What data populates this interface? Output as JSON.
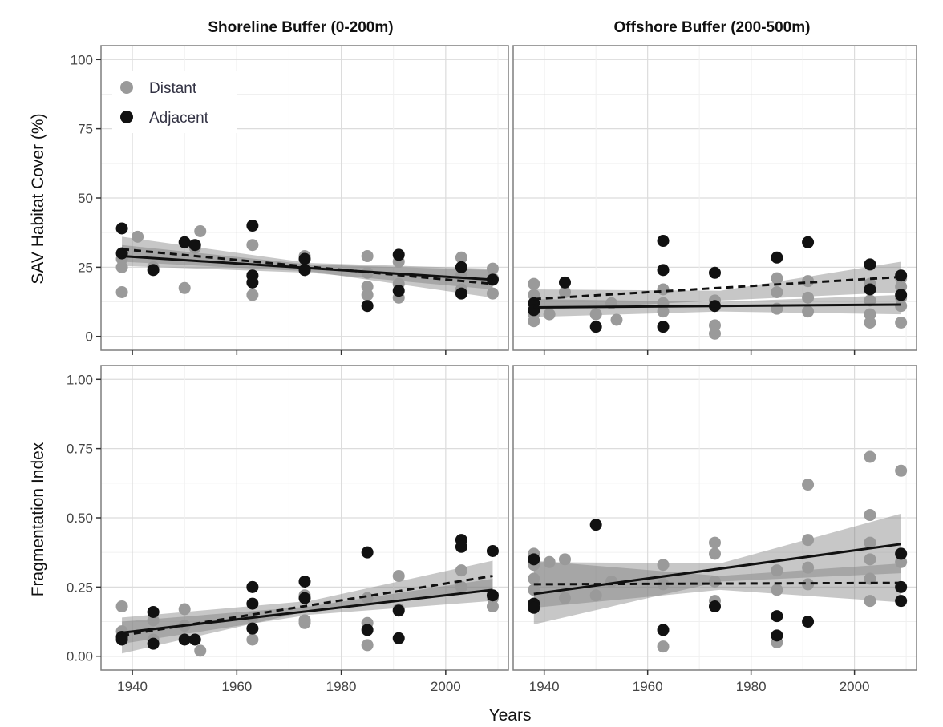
{
  "chart_data": {
    "type": "scatter",
    "facets": {
      "columns": [
        "Shoreline Buffer (0-200m)",
        "Offshore Buffer (200-500m)"
      ],
      "rows": [
        {
          "ylabel": "SAV Habitat Cover (%)",
          "ylim": [
            0,
            100
          ],
          "yticks": [
            "0",
            "25",
            "50",
            "75",
            "100"
          ]
        },
        {
          "ylabel": "Fragmentation Index",
          "ylim": [
            0,
            1
          ],
          "yticks": [
            "0.00",
            "0.25",
            "0.50",
            "0.75",
            "1.00"
          ]
        }
      ]
    },
    "xlabel": "Years",
    "xlim": [
      1934,
      2012
    ],
    "xticks": [
      "1940",
      "1960",
      "1980",
      "2000"
    ],
    "grid": true,
    "legend": {
      "placement": "top-left",
      "entries": [
        {
          "label": "Distant",
          "color": "#9a9a9a",
          "line": "dashed"
        },
        {
          "label": "Adjacent",
          "color": "#111111",
          "line": "solid"
        }
      ]
    },
    "panels": [
      {
        "row": 0,
        "col": 0,
        "distant": {
          "points": [
            [
              1938,
              16
            ],
            [
              1938,
              25
            ],
            [
              1938,
              28
            ],
            [
              1941,
              36
            ],
            [
              1944,
              25
            ],
            [
              1950,
              17.5
            ],
            [
              1953,
              38
            ],
            [
              1952,
              32
            ],
            [
              1963,
              33
            ],
            [
              1963,
              15
            ],
            [
              1963,
              22
            ],
            [
              1973,
              29
            ],
            [
              1973,
              25
            ],
            [
              1985,
              29
            ],
            [
              1985,
              23
            ],
            [
              1985,
              18
            ],
            [
              1985,
              15
            ],
            [
              1991,
              27
            ],
            [
              1991,
              14
            ],
            [
              1991,
              19
            ],
            [
              2003,
              28.5
            ],
            [
              2003,
              22
            ],
            [
              2003,
              17
            ],
            [
              2009,
              24.5
            ],
            [
              2009,
              21
            ],
            [
              2009,
              15.5
            ]
          ],
          "fit": [
            [
              1938,
              31.5
            ],
            [
              2009,
              19
            ]
          ],
          "band_upper": [
            [
              1938,
              36
            ],
            [
              1974,
              26.5
            ],
            [
              2009,
              24.5
            ]
          ],
          "band_lower": [
            [
              1938,
              27
            ],
            [
              1974,
              23.5
            ],
            [
              2009,
              14
            ]
          ]
        },
        "adjacent": {
          "points": [
            [
              1938,
              39
            ],
            [
              1938,
              30
            ],
            [
              1944,
              24
            ],
            [
              1950,
              34
            ],
            [
              1952,
              33
            ],
            [
              1963,
              40
            ],
            [
              1963,
              22
            ],
            [
              1963,
              19.5
            ],
            [
              1973,
              28
            ],
            [
              1973,
              24
            ],
            [
              1985,
              11
            ],
            [
              1991,
              29.5
            ],
            [
              1991,
              16.5
            ],
            [
              2003,
              15.5
            ],
            [
              2003,
              25
            ],
            [
              2009,
              20.5
            ]
          ],
          "fit": [
            [
              1938,
              29
            ],
            [
              2009,
              20.5
            ]
          ],
          "band_upper": [
            [
              1938,
              33
            ],
            [
              1974,
              26
            ],
            [
              2009,
              24
            ]
          ],
          "band_lower": [
            [
              1938,
              25.5
            ],
            [
              1974,
              23
            ],
            [
              2009,
              17
            ]
          ]
        }
      },
      {
        "row": 0,
        "col": 1,
        "distant": {
          "points": [
            [
              1938,
              19
            ],
            [
              1938,
              15
            ],
            [
              1938,
              12
            ],
            [
              1938,
              8
            ],
            [
              1938,
              5.5
            ],
            [
              1941,
              8
            ],
            [
              1944,
              16
            ],
            [
              1950,
              8
            ],
            [
              1953,
              12
            ],
            [
              1954,
              6
            ],
            [
              1963,
              17
            ],
            [
              1963,
              12
            ],
            [
              1963,
              9
            ],
            [
              1973,
              13
            ],
            [
              1973,
              4
            ],
            [
              1973,
              1
            ],
            [
              1985,
              21
            ],
            [
              1985,
              16
            ],
            [
              1985,
              10
            ],
            [
              1991,
              20
            ],
            [
              1991,
              14
            ],
            [
              1991,
              9
            ],
            [
              2003,
              19
            ],
            [
              2003,
              13
            ],
            [
              2003,
              8
            ],
            [
              2003,
              5
            ],
            [
              2009,
              21
            ],
            [
              2009,
              18
            ],
            [
              2009,
              14
            ],
            [
              2009,
              11
            ],
            [
              2009,
              5
            ]
          ],
          "fit": [
            [
              1938,
              13.5
            ],
            [
              2009,
              21.5
            ]
          ],
          "band_upper": [
            [
              1938,
              17
            ],
            [
              1974,
              16.5
            ],
            [
              2009,
              27
            ]
          ],
          "band_lower": [
            [
              1938,
              9.5
            ],
            [
              1974,
              13
            ],
            [
              2009,
              16
            ]
          ]
        },
        "adjacent": {
          "points": [
            [
              1938,
              12
            ],
            [
              1938,
              9.5
            ],
            [
              1944,
              19.5
            ],
            [
              1950,
              3.5
            ],
            [
              1963,
              34.5
            ],
            [
              1963,
              24
            ],
            [
              1963,
              3.5
            ],
            [
              1973,
              23
            ],
            [
              1973,
              11
            ],
            [
              1985,
              28.5
            ],
            [
              1991,
              34
            ],
            [
              2003,
              26
            ],
            [
              2003,
              17
            ],
            [
              2009,
              22
            ],
            [
              2009,
              15
            ]
          ],
          "fit": [
            [
              1938,
              10.5
            ],
            [
              2009,
              11.5
            ]
          ],
          "band_upper": [
            [
              1938,
              13.5
            ],
            [
              1974,
              12.5
            ],
            [
              2009,
              15
            ]
          ],
          "band_lower": [
            [
              1938,
              7
            ],
            [
              1974,
              9
            ],
            [
              2009,
              8
            ]
          ]
        }
      },
      {
        "row": 1,
        "col": 0,
        "distant": {
          "points": [
            [
              1938,
              0.18
            ],
            [
              1938,
              0.09
            ],
            [
              1938,
              0.07
            ],
            [
              1944,
              0.13
            ],
            [
              1944,
              0.06
            ],
            [
              1950,
              0.17
            ],
            [
              1950,
              0.11
            ],
            [
              1953,
              0.02
            ],
            [
              1963,
              0.25
            ],
            [
              1963,
              0.14
            ],
            [
              1963,
              0.06
            ],
            [
              1973,
              0.22
            ],
            [
              1973,
              0.13
            ],
            [
              1973,
              0.12
            ],
            [
              1985,
              0.21
            ],
            [
              1985,
              0.12
            ],
            [
              1985,
              0.04
            ],
            [
              1991,
              0.29
            ],
            [
              1991,
              0.17
            ],
            [
              2003,
              0.31
            ],
            [
              2003,
              0.25
            ],
            [
              2009,
              0.21
            ],
            [
              2009,
              0.18
            ]
          ],
          "fit": [
            [
              1938,
              0.075
            ],
            [
              2009,
              0.29
            ]
          ],
          "band_upper": [
            [
              1938,
              0.14
            ],
            [
              1974,
              0.2
            ],
            [
              2009,
              0.345
            ]
          ],
          "band_lower": [
            [
              1938,
              0.01
            ],
            [
              1974,
              0.165
            ],
            [
              2009,
              0.235
            ]
          ]
        },
        "adjacent": {
          "points": [
            [
              1938,
              0.07
            ],
            [
              1938,
              0.06
            ],
            [
              1944,
              0.16
            ],
            [
              1944,
              0.045
            ],
            [
              1950,
              0.06
            ],
            [
              1952,
              0.06
            ],
            [
              1963,
              0.25
            ],
            [
              1963,
              0.19
            ],
            [
              1963,
              0.1
            ],
            [
              1973,
              0.27
            ],
            [
              1973,
              0.21
            ],
            [
              1985,
              0.375
            ],
            [
              1985,
              0.095
            ],
            [
              1991,
              0.165
            ],
            [
              1991,
              0.065
            ],
            [
              2003,
              0.42
            ],
            [
              2003,
              0.395
            ],
            [
              2009,
              0.38
            ],
            [
              2009,
              0.22
            ]
          ],
          "fit": [
            [
              1938,
              0.085
            ],
            [
              2009,
              0.24
            ]
          ],
          "band_upper": [
            [
              1938,
              0.125
            ],
            [
              1974,
              0.18
            ],
            [
              2009,
              0.28
            ]
          ],
          "band_lower": [
            [
              1938,
              0.045
            ],
            [
              1974,
              0.15
            ],
            [
              2009,
              0.2
            ]
          ]
        }
      },
      {
        "row": 1,
        "col": 1,
        "distant": {
          "points": [
            [
              1938,
              0.37
            ],
            [
              1938,
              0.33
            ],
            [
              1938,
              0.28
            ],
            [
              1938,
              0.24
            ],
            [
              1941,
              0.34
            ],
            [
              1944,
              0.35
            ],
            [
              1944,
              0.21
            ],
            [
              1950,
              0.22
            ],
            [
              1953,
              0.27
            ],
            [
              1963,
              0.33
            ],
            [
              1963,
              0.26
            ],
            [
              1963,
              0.035
            ],
            [
              1973,
              0.41
            ],
            [
              1973,
              0.37
            ],
            [
              1973,
              0.27
            ],
            [
              1973,
              0.2
            ],
            [
              1985,
              0.31
            ],
            [
              1985,
              0.24
            ],
            [
              1985,
              0.05
            ],
            [
              1991,
              0.62
            ],
            [
              1991,
              0.42
            ],
            [
              1991,
              0.32
            ],
            [
              1991,
              0.26
            ],
            [
              2003,
              0.72
            ],
            [
              2003,
              0.51
            ],
            [
              2003,
              0.41
            ],
            [
              2003,
              0.35
            ],
            [
              2003,
              0.28
            ],
            [
              2003,
              0.2
            ],
            [
              2009,
              0.67
            ],
            [
              2009,
              0.37
            ],
            [
              2009,
              0.34
            ]
          ],
          "fit": [
            [
              1938,
              0.26
            ],
            [
              2009,
              0.265
            ]
          ],
          "band_upper": [
            [
              1938,
              0.345
            ],
            [
              1974,
              0.29
            ],
            [
              2009,
              0.335
            ]
          ],
          "band_lower": [
            [
              1938,
              0.175
            ],
            [
              1974,
              0.24
            ],
            [
              2009,
              0.195
            ]
          ]
        },
        "adjacent": {
          "points": [
            [
              1938,
              0.35
            ],
            [
              1938,
              0.19
            ],
            [
              1938,
              0.175
            ],
            [
              1950,
              0.475
            ],
            [
              1963,
              0.095
            ],
            [
              1973,
              0.18
            ],
            [
              1985,
              0.145
            ],
            [
              1985,
              0.075
            ],
            [
              1991,
              0.125
            ],
            [
              2009,
              0.37
            ],
            [
              2009,
              0.25
            ],
            [
              2009,
              0.2
            ]
          ],
          "fit": [
            [
              1938,
              0.225
            ],
            [
              2009,
              0.405
            ]
          ],
          "band_upper": [
            [
              1938,
              0.34
            ],
            [
              1974,
              0.335
            ],
            [
              2009,
              0.515
            ]
          ],
          "band_lower": [
            [
              1938,
              0.115
            ],
            [
              1974,
              0.27
            ],
            [
              2009,
              0.3
            ]
          ]
        }
      }
    ]
  }
}
